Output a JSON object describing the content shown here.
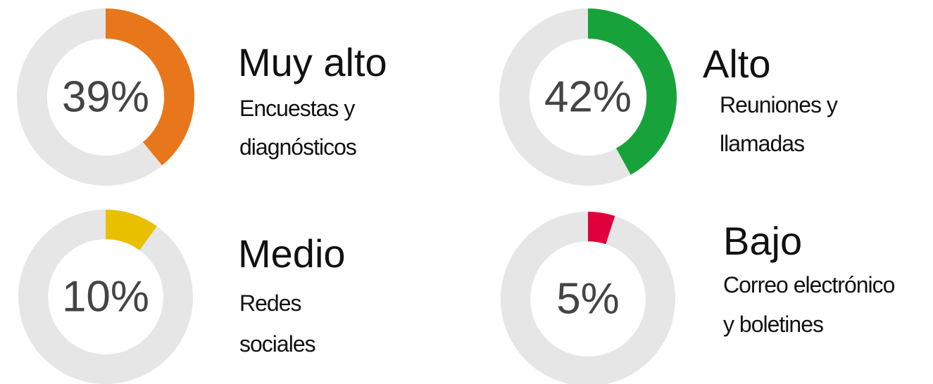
{
  "chart_data": [
    {
      "type": "donut",
      "title": "Muy alto",
      "subtitle": [
        "Encuestas y",
        "diagnósticos"
      ],
      "values": [
        39
      ],
      "value_labels": [
        "39%"
      ],
      "color": "#e8761a"
    },
    {
      "type": "donut",
      "title": "Alto",
      "subtitle": [
        "Reuniones y",
        "llamadas"
      ],
      "values": [
        42
      ],
      "value_labels": [
        "42%"
      ],
      "color": "#17a33a"
    },
    {
      "type": "donut",
      "title": "Medio",
      "subtitle": [
        "Redes",
        "sociales"
      ],
      "values": [
        10
      ],
      "value_labels": [
        "10%"
      ],
      "color": "#e9c000"
    },
    {
      "type": "donut",
      "title": "Bajo",
      "subtitle": [
        "Correo electrónico",
        "y boletines"
      ],
      "values": [
        5
      ],
      "value_labels": [
        "5%"
      ],
      "color": "#e0003c"
    }
  ]
}
